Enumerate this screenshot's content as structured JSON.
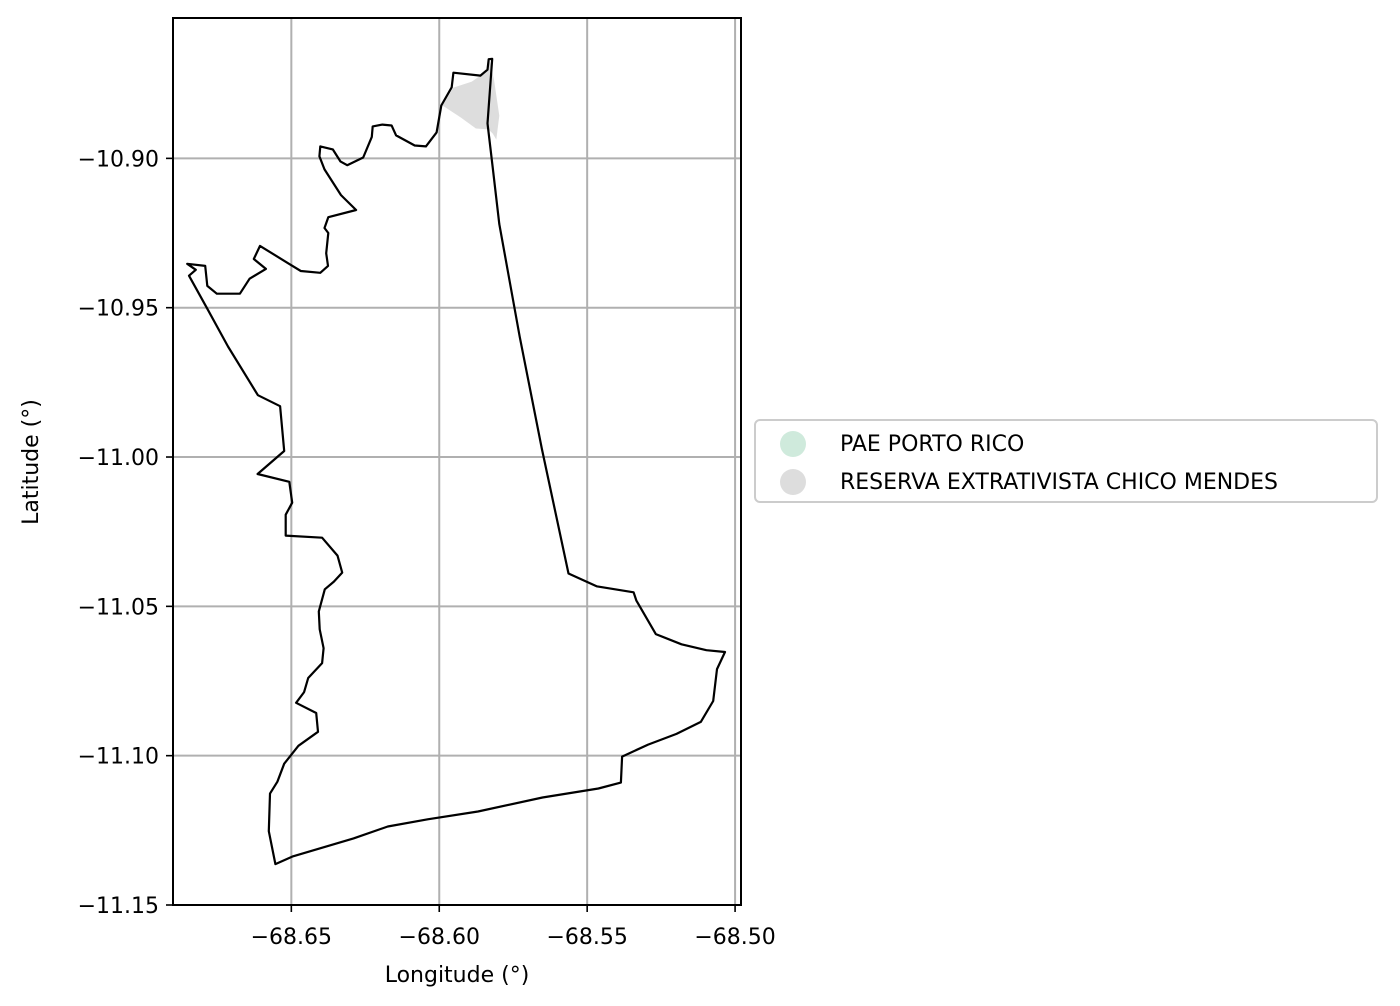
{
  "chart_data": {
    "type": "map",
    "xlabel": "Longitude (°)",
    "ylabel": "Latitude (°)",
    "xlim": [
      -68.69,
      -68.498
    ],
    "ylim": [
      -11.15,
      -10.853
    ],
    "xticks": [
      -68.65,
      -68.6,
      -68.55,
      -68.5
    ],
    "xtick_labels": [
      "−68.65",
      "−68.60",
      "−68.55",
      "−68.50"
    ],
    "yticks": [
      -10.9,
      -10.95,
      -11.0,
      -11.05,
      -11.1,
      -11.15
    ],
    "ytick_labels": [
      "−10.90",
      "−10.95",
      "−11.00",
      "−11.05",
      "−11.10",
      "−11.15"
    ],
    "grid": true,
    "legend_placement": "right-center",
    "legend": [
      {
        "label": "PAE PORTO RICO",
        "color": "#cfeadc"
      },
      {
        "label": "RESERVA EXTRATIVISTA CHICO MENDES",
        "color": "#dddddd"
      }
    ],
    "boundary": {
      "name": "PAE PORTO RICO",
      "stroke": "#000000",
      "coords": [
        [
          -68.5821,
          -10.8667
        ],
        [
          -68.5833,
          -10.8668
        ],
        [
          -68.5837,
          -10.8703
        ],
        [
          -68.5861,
          -10.8723
        ],
        [
          -68.5952,
          -10.8713
        ],
        [
          -68.5958,
          -10.8762
        ],
        [
          -68.5993,
          -10.8823
        ],
        [
          -68.6009,
          -10.8913
        ],
        [
          -68.6045,
          -10.896
        ],
        [
          -68.6083,
          -10.8957
        ],
        [
          -68.6146,
          -10.8923
        ],
        [
          -68.6161,
          -10.889
        ],
        [
          -68.6192,
          -10.8887
        ],
        [
          -68.6225,
          -10.8893
        ],
        [
          -68.6228,
          -10.8928
        ],
        [
          -68.6257,
          -10.8997
        ],
        [
          -68.6311,
          -10.9023
        ],
        [
          -68.6334,
          -10.901
        ],
        [
          -68.636,
          -10.897
        ],
        [
          -68.6402,
          -10.896
        ],
        [
          -68.6405,
          -10.8993
        ],
        [
          -68.6388,
          -10.9037
        ],
        [
          -68.6332,
          -10.9123
        ],
        [
          -68.6281,
          -10.9173
        ],
        [
          -68.6375,
          -10.9197
        ],
        [
          -68.6388,
          -10.9233
        ],
        [
          -68.6375,
          -10.925
        ],
        [
          -68.6382,
          -10.9318
        ],
        [
          -68.6376,
          -10.936
        ],
        [
          -68.6402,
          -10.9383
        ],
        [
          -68.6468,
          -10.9377
        ],
        [
          -68.6508,
          -10.9353
        ],
        [
          -68.6606,
          -10.9293
        ],
        [
          -68.6627,
          -10.9337
        ],
        [
          -68.6586,
          -10.937
        ],
        [
          -68.6641,
          -10.9403
        ],
        [
          -68.6674,
          -10.9453
        ],
        [
          -68.6752,
          -10.9453
        ],
        [
          -68.6784,
          -10.9427
        ],
        [
          -68.6791,
          -10.936
        ],
        [
          -68.6852,
          -10.9353
        ],
        [
          -68.6823,
          -10.9373
        ],
        [
          -68.6846,
          -10.9393
        ],
        [
          -68.6782,
          -10.9507
        ],
        [
          -68.6714,
          -10.963
        ],
        [
          -68.6613,
          -10.9793
        ],
        [
          -68.6538,
          -10.983
        ],
        [
          -68.6524,
          -10.998
        ],
        [
          -68.6614,
          -11.0057
        ],
        [
          -68.6507,
          -11.0083
        ],
        [
          -68.6497,
          -11.0153
        ],
        [
          -68.6519,
          -11.0193
        ],
        [
          -68.6519,
          -11.0263
        ],
        [
          -68.6396,
          -11.027
        ],
        [
          -68.6344,
          -11.033
        ],
        [
          -68.6328,
          -11.0387
        ],
        [
          -68.6356,
          -11.0417
        ],
        [
          -68.6387,
          -11.0443
        ],
        [
          -68.6407,
          -11.0517
        ],
        [
          -68.6404,
          -11.0577
        ],
        [
          -68.6391,
          -11.064
        ],
        [
          -68.6396,
          -11.069
        ],
        [
          -68.6443,
          -11.074
        ],
        [
          -68.6457,
          -11.0787
        ],
        [
          -68.6484,
          -11.0823
        ],
        [
          -68.6416,
          -11.0857
        ],
        [
          -68.641,
          -11.092
        ],
        [
          -68.6476,
          -11.0967
        ],
        [
          -68.6524,
          -11.1027
        ],
        [
          -68.6547,
          -11.1087
        ],
        [
          -68.6572,
          -11.1127
        ],
        [
          -68.6576,
          -11.1253
        ],
        [
          -68.6554,
          -11.1363
        ],
        [
          -68.6494,
          -11.1337
        ],
        [
          -68.629,
          -11.1277
        ],
        [
          -68.6174,
          -11.1237
        ],
        [
          -68.6039,
          -11.1213
        ],
        [
          -68.5869,
          -11.1187
        ],
        [
          -68.5651,
          -11.114
        ],
        [
          -68.5462,
          -11.111
        ],
        [
          -68.5386,
          -11.109
        ],
        [
          -68.5382,
          -11.1003
        ],
        [
          -68.5294,
          -11.0963
        ],
        [
          -68.5198,
          -11.0927
        ],
        [
          -68.5116,
          -11.0887
        ],
        [
          -68.5074,
          -11.0817
        ],
        [
          -68.5061,
          -11.071
        ],
        [
          -68.5034,
          -11.0653
        ],
        [
          -68.5097,
          -11.0647
        ],
        [
          -68.5181,
          -11.0627
        ],
        [
          -68.5268,
          -11.0593
        ],
        [
          -68.5334,
          -11.048
        ],
        [
          -68.5343,
          -11.0453
        ],
        [
          -68.5468,
          -11.0433
        ],
        [
          -68.5563,
          -11.039
        ],
        [
          -68.5653,
          -10.9973
        ],
        [
          -68.5728,
          -10.9597
        ],
        [
          -68.5797,
          -10.922
        ],
        [
          -68.5819,
          -10.9033
        ],
        [
          -68.5837,
          -10.8883
        ]
      ]
    },
    "reserva_patch": {
      "name": "RESERVA EXTRATIVISTA CHICO MENDES",
      "fill": "#dddddd",
      "coords": [
        [
          -68.5829,
          -10.8673
        ],
        [
          -68.584,
          -10.8708
        ],
        [
          -68.589,
          -10.8743
        ],
        [
          -68.5952,
          -10.8763
        ],
        [
          -68.5989,
          -10.8823
        ],
        [
          -68.5927,
          -10.8863
        ],
        [
          -68.5876,
          -10.89
        ],
        [
          -68.5834,
          -10.8903
        ],
        [
          -68.5819,
          -10.8917
        ],
        [
          -68.5807,
          -10.8937
        ],
        [
          -68.5797,
          -10.8857
        ],
        [
          -68.5815,
          -10.8737
        ]
      ]
    }
  }
}
